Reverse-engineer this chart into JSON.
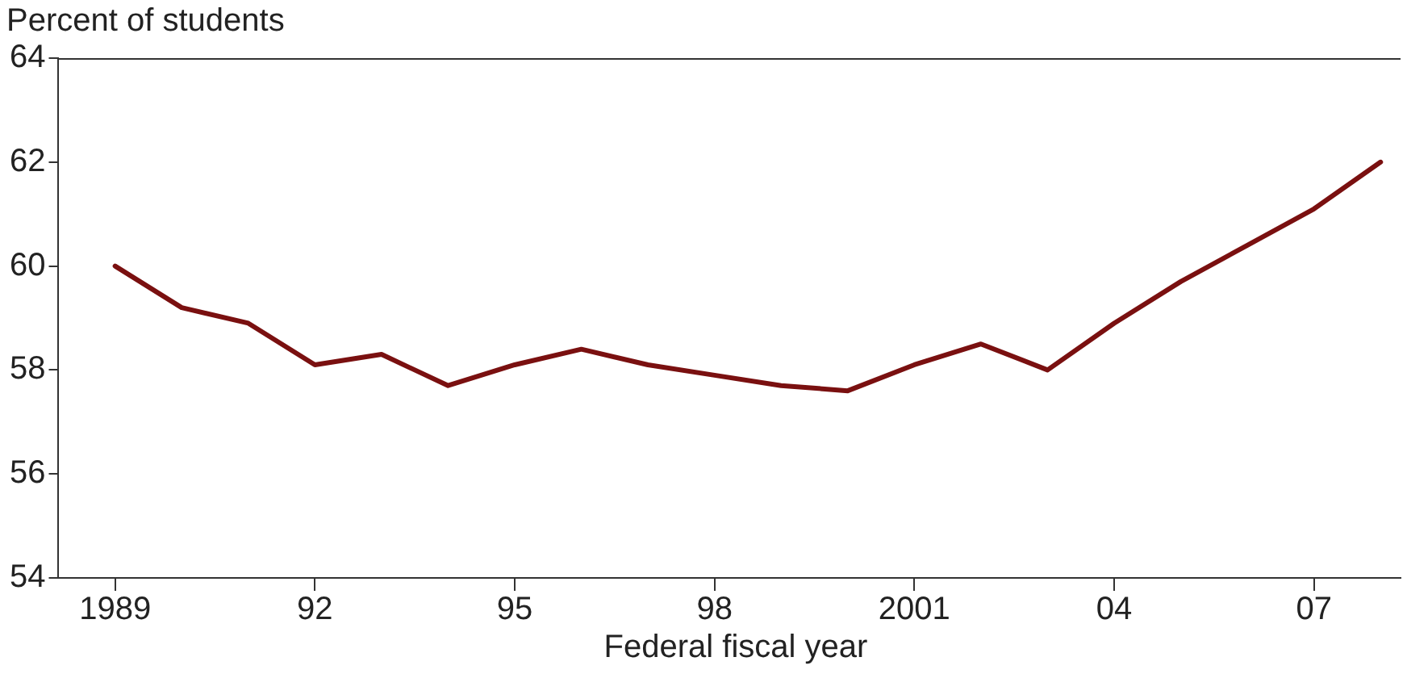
{
  "chart_data": {
    "type": "line",
    "ylabel": "Percent of students",
    "xlabel": "Federal fiscal year",
    "x": [
      1989,
      1990,
      1991,
      1992,
      1993,
      1994,
      1995,
      1996,
      1997,
      1998,
      1999,
      2000,
      2001,
      2002,
      2003,
      2004,
      2005,
      2006,
      2007,
      2008
    ],
    "series": [
      {
        "color": "#7a1010",
        "values": [
          60.0,
          59.2,
          58.9,
          58.1,
          58.3,
          57.7,
          58.1,
          58.4,
          58.1,
          57.9,
          57.7,
          57.6,
          58.1,
          58.5,
          58.0,
          58.9,
          59.7,
          60.4,
          61.1,
          62.0
        ]
      }
    ],
    "xlim": [
      1988.15,
      2008.3
    ],
    "xticks": [
      {
        "value": 1989,
        "label": "1989"
      },
      {
        "value": 1992,
        "label": "92"
      },
      {
        "value": 1995,
        "label": "95"
      },
      {
        "value": 1998,
        "label": "98"
      },
      {
        "value": 2001,
        "label": "2001"
      },
      {
        "value": 2004,
        "label": "04"
      },
      {
        "value": 2007,
        "label": "07"
      }
    ],
    "ylim": [
      54,
      64
    ],
    "yticks": [
      54,
      56,
      58,
      60,
      62,
      64
    ],
    "grid": false,
    "legend": false,
    "marker": "none",
    "line_style": "solid"
  }
}
